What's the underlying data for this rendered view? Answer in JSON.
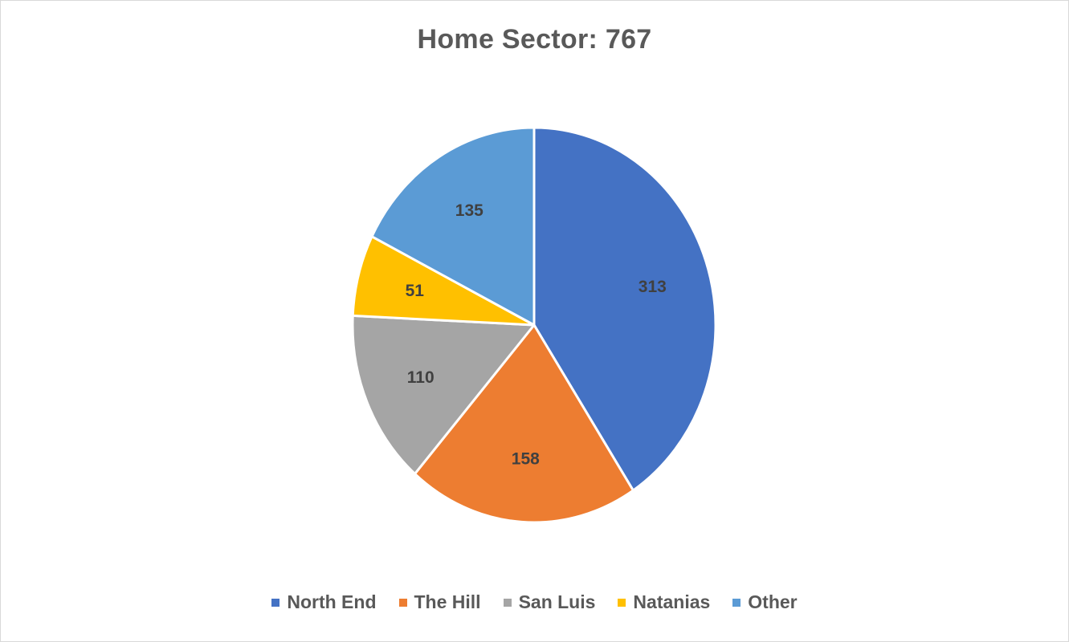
{
  "chart_data": {
    "type": "pie",
    "title": "Home Sector: 767",
    "categories": [
      "North End",
      "The Hill",
      "San Luis",
      "Natanias",
      "Other"
    ],
    "values": [
      313,
      158,
      110,
      51,
      135
    ],
    "colors": [
      "#4472C4",
      "#ED7D31",
      "#A5A5A5",
      "#FFC000",
      "#5B9BD5"
    ],
    "data_labels": [
      "313",
      "158",
      "110",
      "51",
      "135"
    ],
    "start_angle": "12 o'clock",
    "direction": "clockwise",
    "legend_position": "bottom"
  }
}
